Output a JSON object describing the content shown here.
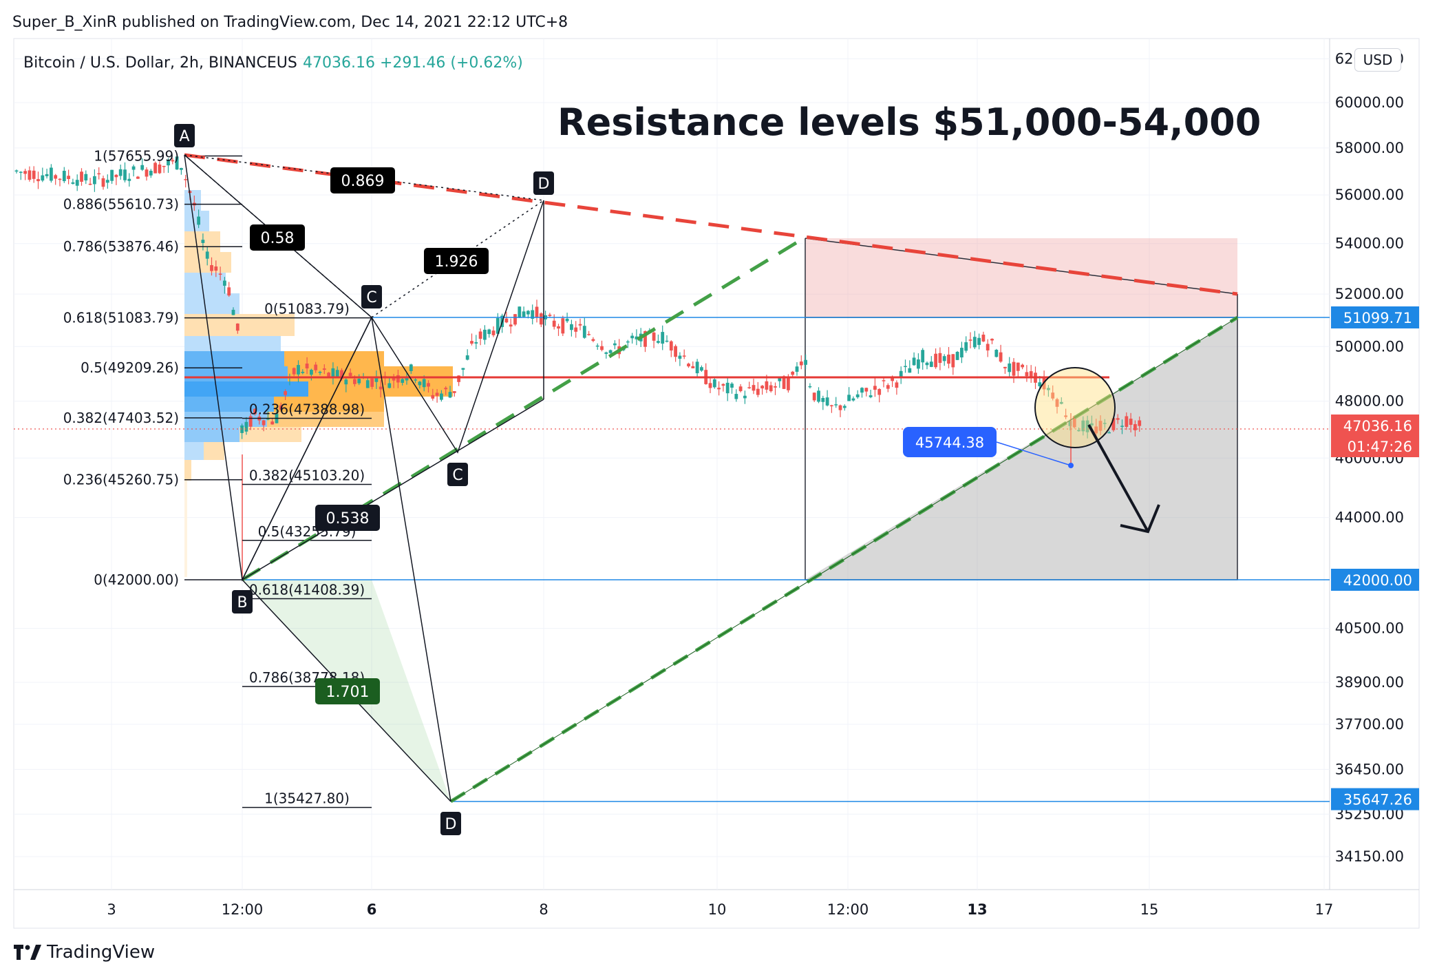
{
  "publisher": "Super_B_XinR published on TradingView.com, Dec 14, 2021 22:12 UTC+8",
  "symbol": {
    "name": "Bitcoin / U.S. Dollar, 2h, BINANCEUS",
    "price": "47036.16",
    "change": "+291.46 (+0.62%)",
    "change_color": "#26a69a"
  },
  "annotation_title": "Resistance levels $51,000-54,000",
  "currency": "USD",
  "brand": "TradingView",
  "colors": {
    "up": "#26a69a",
    "down": "#ef5350",
    "resistance": "#e8443a",
    "support": "#43a047",
    "price_line": "#1e88e5"
  },
  "chart_data": {
    "type": "candlestick",
    "y_scale": "log",
    "x_ticks": [
      "3",
      "12:00",
      "6",
      "8",
      "10",
      "12:00",
      "13",
      "15",
      "17"
    ],
    "y_ticks": [
      "62000.00",
      "60000.00",
      "58000.00",
      "56000.00",
      "54000.00",
      "52000.00",
      "50000.00",
      "48000.00",
      "46000.00",
      "44000.00",
      "40500.00",
      "38900.00",
      "37700.00",
      "36450.00",
      "35250.00",
      "34150.00"
    ],
    "price_badges": [
      {
        "label": "51099.71",
        "value": 51099.71,
        "color": "#1e88e5"
      },
      {
        "label": "42000.00",
        "value": 42000,
        "color": "#1e88e5"
      },
      {
        "label": "35647.26",
        "value": 35647.26,
        "color": "#1e88e5"
      },
      {
        "label": "47036.16",
        "sub": "01:47:26",
        "value": 47036.16,
        "color": "#ef5350"
      }
    ],
    "fib_left": [
      {
        "label": "1(57655.99)",
        "value": 57655.99
      },
      {
        "label": "0.886(55610.73)",
        "value": 55610.73
      },
      {
        "label": "0.786(53876.46)",
        "value": 53876.46
      },
      {
        "label": "0.618(51083.79)",
        "value": 51083.79
      },
      {
        "label": "0.5(49209.26)",
        "value": 49209.26
      },
      {
        "label": "0.382(47403.52)",
        "value": 47403.52
      },
      {
        "label": "0.236(45260.75)",
        "value": 45260.75
      },
      {
        "label": "0(42000.00)",
        "value": 42000.0
      }
    ],
    "fib_right": [
      {
        "label": "0(51083.79)",
        "value": 51083.79
      },
      {
        "label": "0.236(47388.98)",
        "value": 47388.98
      },
      {
        "label": "0.382(45103.20)",
        "value": 45103.2
      },
      {
        "label": "0.5(43255.79)",
        "value": 43255.79
      },
      {
        "label": "0.618(41408.39)",
        "value": 41408.39
      },
      {
        "label": "0.786(38778.18)",
        "value": 38778.18
      },
      {
        "label": "1(35427.80)",
        "value": 35427.8
      }
    ],
    "points": [
      {
        "label": "A",
        "price": 57655.99
      },
      {
        "label": "B",
        "price": 42000.0
      },
      {
        "label": "C",
        "price": 51083.79
      },
      {
        "label": "D",
        "price": 35647.26
      },
      {
        "label": "C",
        "price": 46100
      },
      {
        "label": "D",
        "price": 55800
      }
    ],
    "ratios": [
      "0.58",
      "1.926",
      "0.869",
      "0.538",
      "1.701"
    ],
    "price_callout": "45744.38",
    "resistance_range": [
      51000,
      54000
    ]
  }
}
